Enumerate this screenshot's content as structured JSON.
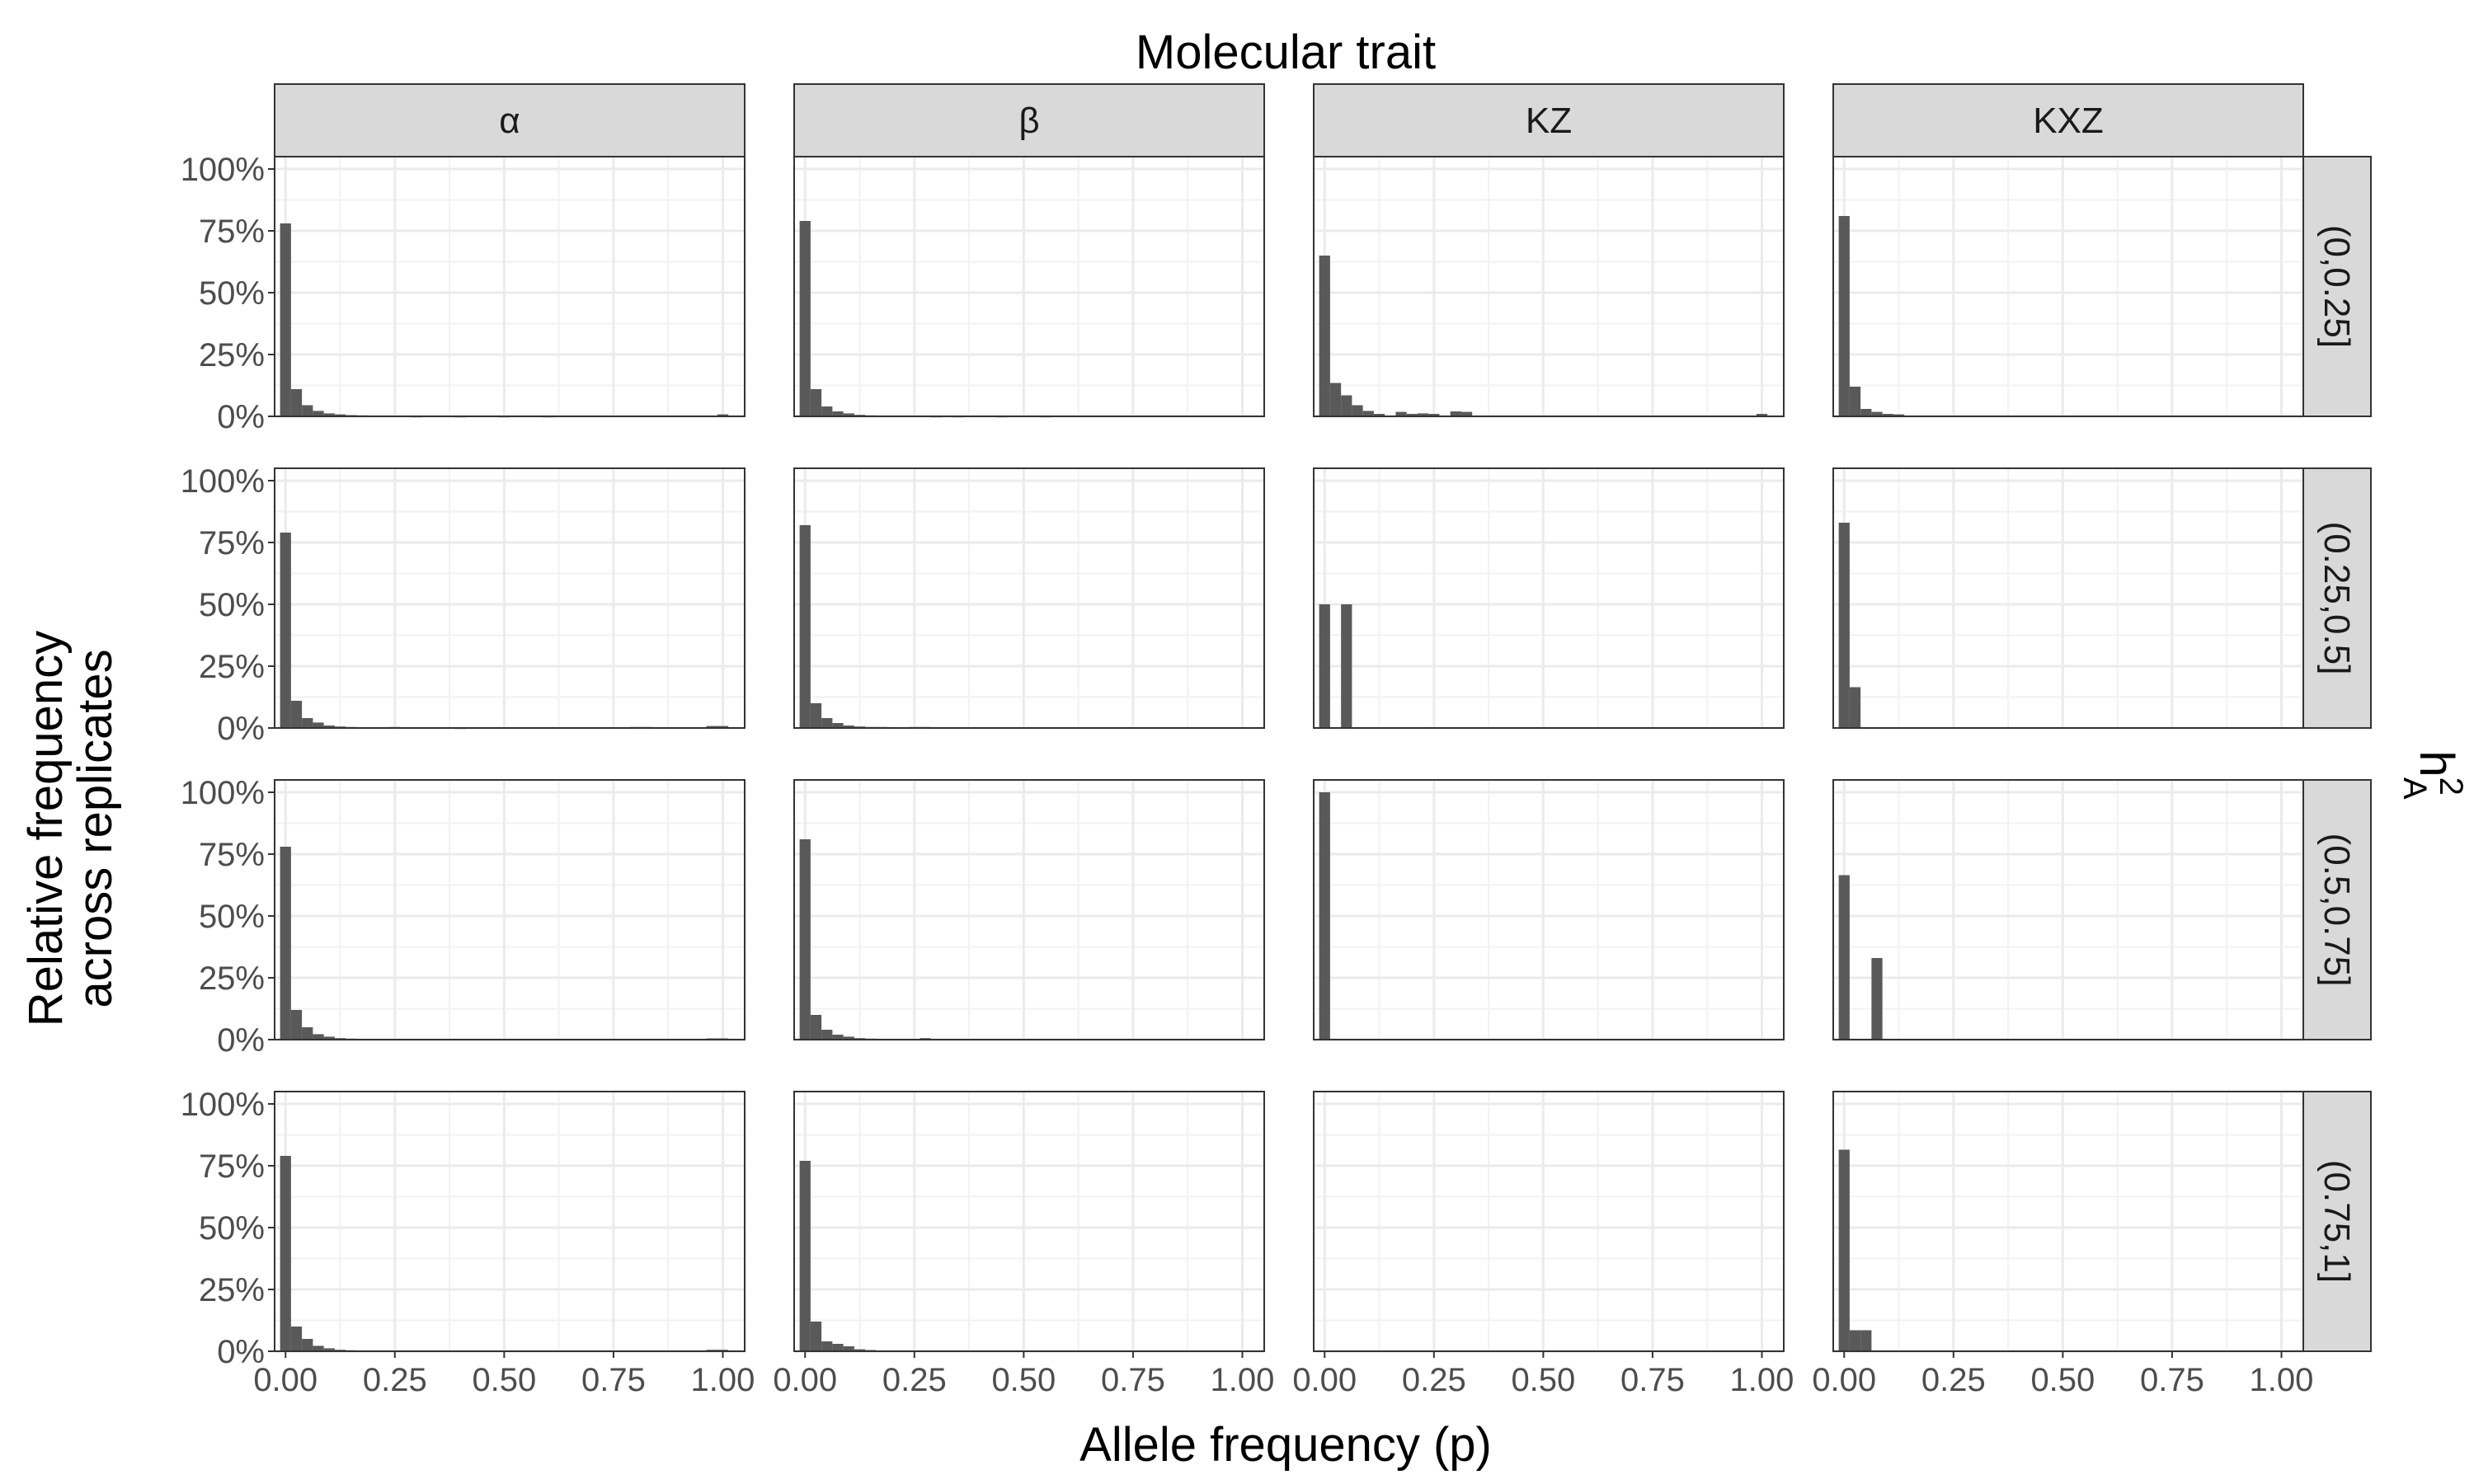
{
  "chart_data": {
    "type": "bar",
    "title": "Molecular trait",
    "xlabel": "Allele frequency (p)",
    "ylabel": [
      "Relative frequency",
      "across replicates"
    ],
    "facet_title_right": "h",
    "facet_title_right_sup": "2",
    "facet_title_right_sub": "A",
    "xlim": [
      -0.025,
      1.05
    ],
    "ylim": [
      0,
      1.05
    ],
    "x_ticks": [
      0,
      0.25,
      0.5,
      0.75,
      1.0
    ],
    "x_tick_labels": [
      "0.00",
      "0.25",
      "0.50",
      "0.75",
      "1.00"
    ],
    "y_ticks": [
      0,
      0.25,
      0.5,
      0.75,
      1.0
    ],
    "y_tick_labels": [
      "0%",
      "25%",
      "50%",
      "75%",
      "100%"
    ],
    "bin_width": 0.025,
    "bar_color": "#595959",
    "grid": true,
    "columns": [
      "α",
      "β",
      "KZ",
      "KXZ"
    ],
    "rows": [
      "(0,0.25]",
      "(0.25,0.5]",
      "(0.5,0.75]",
      "(0.75,1]"
    ],
    "panels": [
      [
        {
          "x": [
            0,
            0.025,
            0.05,
            0.075,
            0.1,
            0.125,
            0.15,
            0.175,
            0.2,
            0.225,
            0.25,
            0.3,
            0.4,
            0.5,
            0.6,
            1.0
          ],
          "y": [
            0.78,
            0.11,
            0.045,
            0.022,
            0.012,
            0.008,
            0.005,
            0.004,
            0.003,
            0.002,
            0.002,
            0.001,
            0.001,
            0.001,
            0.001,
            0.008
          ]
        },
        {
          "x": [
            0,
            0.025,
            0.05,
            0.075,
            0.1,
            0.125,
            0.15,
            0.175,
            0.2,
            0.225,
            0.25,
            0.3,
            0.35,
            0.45,
            0.55,
            0.65,
            0.7,
            0.95,
            1.0
          ],
          "y": [
            0.79,
            0.11,
            0.04,
            0.02,
            0.012,
            0.006,
            0.004,
            0.003,
            0.002,
            0.002,
            0.002,
            0.001,
            0.001,
            0.001,
            0.001,
            0.003,
            0.003,
            0.003,
            0.003
          ]
        },
        {
          "x": [
            0,
            0.025,
            0.05,
            0.075,
            0.1,
            0.125,
            0.175,
            0.2,
            0.225,
            0.25,
            0.3,
            0.325,
            1.0
          ],
          "y": [
            0.65,
            0.135,
            0.085,
            0.045,
            0.022,
            0.01,
            0.018,
            0.01,
            0.012,
            0.01,
            0.02,
            0.018,
            0.01
          ]
        },
        {
          "x": [
            0,
            0.025,
            0.05,
            0.075,
            0.1,
            0.125,
            0.15,
            0.175
          ],
          "y": [
            0.81,
            0.12,
            0.03,
            0.018,
            0.01,
            0.008,
            0.003,
            0.002
          ]
        }
      ],
      [
        {
          "x": [
            0,
            0.025,
            0.05,
            0.075,
            0.1,
            0.125,
            0.15,
            0.175,
            0.2,
            0.25,
            0.3,
            0.4,
            0.8,
            0.825,
            0.975,
            1.0
          ],
          "y": [
            0.79,
            0.11,
            0.04,
            0.022,
            0.01,
            0.006,
            0.004,
            0.003,
            0.002,
            0.004,
            0.002,
            0.001,
            0.004,
            0.004,
            0.008,
            0.008
          ]
        },
        {
          "x": [
            0,
            0.025,
            0.05,
            0.075,
            0.1,
            0.125,
            0.15,
            0.175,
            0.2,
            0.25,
            0.275,
            0.45,
            0.5,
            0.55,
            0.6,
            0.625,
            0.7,
            0.725,
            0.8,
            0.975,
            1.0
          ],
          "y": [
            0.82,
            0.1,
            0.04,
            0.02,
            0.01,
            0.006,
            0.004,
            0.004,
            0.003,
            0.004,
            0.004,
            0.002,
            0.002,
            0.002,
            0.003,
            0.003,
            0.003,
            0.002,
            0.003,
            0.003,
            0.003
          ]
        },
        {
          "x": [
            0,
            0.05
          ],
          "y": [
            0.5,
            0.5
          ]
        },
        {
          "x": [
            0,
            0.025
          ],
          "y": [
            0.83,
            0.165
          ]
        }
      ],
      [
        {
          "x": [
            0,
            0.025,
            0.05,
            0.075,
            0.1,
            0.125,
            0.15,
            0.175,
            0.2,
            0.975,
            1.0
          ],
          "y": [
            0.78,
            0.12,
            0.05,
            0.022,
            0.012,
            0.006,
            0.004,
            0.003,
            0.002,
            0.005,
            0.005
          ]
        },
        {
          "x": [
            0,
            0.025,
            0.05,
            0.075,
            0.1,
            0.125,
            0.15,
            0.175,
            0.2,
            0.225,
            0.25,
            0.275
          ],
          "y": [
            0.81,
            0.1,
            0.04,
            0.02,
            0.012,
            0.006,
            0.004,
            0.003,
            0.003,
            0.002,
            0.002,
            0.006
          ]
        },
        {
          "x": [
            0
          ],
          "y": [
            1.0
          ]
        },
        {
          "x": [
            0,
            0.075
          ],
          "y": [
            0.665,
            0.33
          ]
        }
      ],
      [
        {
          "x": [
            0,
            0.025,
            0.05,
            0.075,
            0.1,
            0.125,
            0.15,
            0.175,
            0.2,
            0.25,
            0.975,
            1.0
          ],
          "y": [
            0.79,
            0.1,
            0.05,
            0.022,
            0.012,
            0.006,
            0.004,
            0.003,
            0.002,
            0.003,
            0.006,
            0.006
          ]
        },
        {
          "x": [
            0,
            0.025,
            0.05,
            0.075,
            0.1,
            0.125,
            0.15,
            0.175,
            0.2,
            0.225,
            0.975,
            1.0
          ],
          "y": [
            0.77,
            0.12,
            0.04,
            0.03,
            0.02,
            0.008,
            0.005,
            0.003,
            0.002,
            0.002,
            0.003,
            0.003
          ]
        },
        {
          "x": [],
          "y": []
        },
        {
          "x": [
            0,
            0.025,
            0.05
          ],
          "y": [
            0.815,
            0.085,
            0.085
          ]
        }
      ]
    ]
  }
}
